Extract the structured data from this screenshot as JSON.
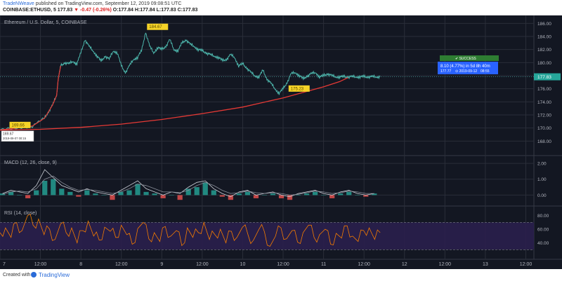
{
  "header": {
    "publisher": "TradeNWeave",
    "published_text": "published on TradingView.com, September 12, 2019 09:08:51 UTC",
    "symbol": "COINBASE:ETHUSD, 5",
    "last": "177.83",
    "change": "▼ -0.47 (-0.26%)",
    "ohlc": "O:177.84 H:177.84 L:177.83 C:177.83"
  },
  "chart_data": {
    "type": "line",
    "title": "Ethereum / U.S. Dollar, 5, COINBASE",
    "price": {
      "ylim": [
        166,
        187
      ],
      "yticks": [
        168.0,
        170.0,
        172.0,
        174.0,
        176.0,
        178.0,
        180.0,
        182.0,
        184.0,
        186.0
      ],
      "ytick_labels": [
        "168.00",
        "170.00",
        "172.00",
        "174.00",
        "176.00",
        "178.00",
        "180.00",
        "182.00",
        "184.00",
        "186.00"
      ],
      "last_price_label": "177.83",
      "series": [
        {
          "x": [
            0.0,
            0.2,
            0.4,
            0.55,
            0.6,
            0.65,
            0.7,
            0.72,
            0.75,
            0.8,
            0.85,
            0.9,
            0.95,
            1.0,
            1.05,
            1.1,
            1.15,
            1.2,
            1.25,
            1.3,
            1.35,
            1.4,
            1.45,
            1.5,
            1.55,
            1.6,
            1.65,
            1.7,
            1.75,
            1.8,
            1.85,
            1.9,
            1.95,
            2.0,
            2.05,
            2.1,
            2.15,
            2.2,
            2.25,
            2.3,
            2.35,
            2.4,
            2.45,
            2.5,
            2.55,
            2.6,
            2.65,
            2.7,
            2.75,
            2.8,
            2.85,
            2.9,
            2.95,
            3.0,
            3.05,
            3.1,
            3.15,
            3.2,
            3.25,
            3.3,
            3.35,
            3.4,
            3.45,
            3.5,
            3.55,
            3.6,
            3.65,
            3.7,
            3.75,
            3.8,
            3.85,
            3.9,
            3.95,
            4.0,
            4.05,
            4.1,
            4.15,
            4.2,
            4.25,
            4.3,
            4.35,
            4.4,
            4.45,
            4.5,
            4.55,
            4.6,
            4.65,
            4.7
          ],
          "y": [
            169.7,
            170.0,
            170.3,
            171.5,
            172.5,
            173.5,
            175.0,
            177.5,
            179.5,
            180.0,
            179.8,
            180.2,
            179.8,
            181.5,
            183.5,
            182.5,
            181.8,
            181.0,
            180.2,
            181.0,
            180.5,
            181.8,
            181.5,
            179.5,
            178.5,
            179.5,
            180.5,
            180.8,
            181.8,
            184.67,
            182.5,
            181.5,
            182.3,
            182.0,
            182.5,
            183.5,
            182.0,
            181.8,
            183.0,
            183.5,
            182.8,
            182.5,
            182.0,
            181.8,
            181.5,
            181.2,
            181.0,
            180.8,
            180.3,
            180.5,
            181.2,
            180.8,
            179.5,
            179.8,
            179.2,
            178.5,
            178.0,
            177.8,
            178.8,
            177.5,
            176.8,
            176.0,
            175.3,
            176.0,
            177.0,
            178.3,
            178.5,
            178.0,
            177.5,
            178.0,
            178.3,
            178.5,
            177.8,
            178.0,
            178.3,
            178.0,
            177.83,
            177.83,
            177.83,
            177.83,
            177.83,
            177.83,
            177.83,
            177.83,
            177.83,
            177.83,
            177.83,
            177.83
          ],
          "line_color": "#4db6ac",
          "mode": "price"
        },
        {
          "x": [
            0.0,
            0.5,
            1.0,
            1.5,
            2.0,
            2.5,
            3.0,
            3.5,
            4.0,
            4.2,
            4.3
          ],
          "y": [
            169.67,
            169.8,
            170.1,
            170.6,
            171.3,
            172.2,
            173.2,
            174.6,
            176.3,
            177.1,
            177.7
          ],
          "line_color": "#e53935",
          "mode": "curve"
        }
      ],
      "annotations": [
        {
          "text": "184.67",
          "x": 1.8,
          "y": 184.67,
          "style": "yellow"
        },
        {
          "text": "169.66",
          "x": 0.1,
          "y": 169.66,
          "style": "yellow"
        },
        {
          "text": "175.23",
          "x": 3.55,
          "y": 175.23,
          "style": "yellow"
        },
        {
          "text": "169.67",
          "x": 0.0,
          "y": 169.67,
          "style": "white"
        },
        {
          "text": "2019-09-07 00:15",
          "x": 0.0,
          "y": 169.67,
          "style": "white-sub"
        }
      ],
      "forecast": {
        "badge": "✔ SUCCESS",
        "line1": "8.10 (4.77%) in 5d 8h 40m",
        "line2_a": "177.77",
        "line2_b": "⊙ 2019-09-12",
        "line2_c": "08:55"
      }
    },
    "macd": {
      "title": "MACD (12, 26, close, 9)",
      "yticks": [
        0.0,
        1.0,
        2.0
      ],
      "ytick_labels": [
        "0.00",
        "1.00",
        "2.00"
      ],
      "ylim": [
        -0.6,
        2.4
      ],
      "histogram": [
        0.1,
        0.2,
        0.0,
        -0.2,
        0.3,
        0.9,
        1.0,
        0.4,
        0.2,
        -0.1,
        0.3,
        0.1,
        0.0,
        -0.3,
        0.2,
        0.3,
        0.7,
        0.2,
        0.1,
        -0.2,
        0.0,
        -0.3,
        0.4,
        0.5,
        0.8,
        0.3,
        -0.1,
        -0.3,
        0.1,
        0.2,
        -0.2,
        0.0,
        0.1,
        -0.2,
        -0.3,
        0.0,
        0.1,
        0.2,
        0.0,
        -0.2,
        0.1,
        0.2,
        0.0,
        -0.1,
        0.1
      ],
      "macd_line": [
        0.1,
        0.3,
        0.2,
        0.1,
        0.6,
        1.6,
        1.1,
        0.6,
        0.4,
        0.2,
        0.4,
        0.2,
        0.1,
        0.0,
        0.3,
        0.6,
        0.9,
        0.4,
        0.2,
        0.0,
        0.2,
        0.1,
        0.5,
        0.8,
        0.9,
        0.4,
        0.1,
        -0.1,
        0.2,
        0.3,
        0.0,
        0.1,
        0.2,
        0.0,
        -0.1,
        0.1,
        0.2,
        0.3,
        0.1,
        0.0,
        0.2,
        0.3,
        0.1,
        0.0,
        0.1
      ],
      "signal_line": [
        0.05,
        0.2,
        0.25,
        0.2,
        0.4,
        1.0,
        1.2,
        0.8,
        0.5,
        0.3,
        0.35,
        0.3,
        0.2,
        0.1,
        0.2,
        0.4,
        0.7,
        0.6,
        0.4,
        0.2,
        0.2,
        0.15,
        0.3,
        0.6,
        0.8,
        0.6,
        0.3,
        0.1,
        0.15,
        0.25,
        0.15,
        0.1,
        0.15,
        0.1,
        0.0,
        0.05,
        0.15,
        0.25,
        0.2,
        0.1,
        0.15,
        0.25,
        0.2,
        0.1,
        0.1
      ]
    },
    "rsi": {
      "title": "RSI (14, close)",
      "yticks": [
        40.0,
        60.0,
        80.0
      ],
      "ytick_labels": [
        "40.00",
        "60.00",
        "80.00"
      ],
      "ylim": [
        18,
        92
      ],
      "upper": 70,
      "lower": 30,
      "values": [
        55,
        62,
        48,
        70,
        58,
        80,
        66,
        75,
        52,
        60,
        45,
        68,
        55,
        62,
        40,
        58,
        72,
        50,
        44,
        63,
        57,
        48,
        66,
        52,
        38,
        61,
        70,
        46,
        55,
        42,
        64,
        50,
        58,
        36,
        62,
        48,
        55,
        70,
        45,
        52,
        60,
        40,
        57,
        48,
        63,
        52,
        44,
        60,
        56,
        35,
        50,
        62,
        46,
        58,
        41,
        55,
        66,
        48,
        52,
        60,
        38,
        54,
        47,
        65,
        50,
        42,
        58,
        62,
        45,
        55
      ]
    },
    "x_axis": {
      "xlim": [
        0,
        6.6
      ],
      "ticks": [
        0.0,
        0.5,
        1.0,
        1.5,
        2.0,
        2.5,
        3.0,
        3.5,
        4.0,
        4.5,
        5.0,
        5.5,
        6.0,
        6.5
      ],
      "labels": [
        "7",
        "12:00",
        "8",
        "12:00",
        "9",
        "12:00",
        "10",
        "12:00",
        "11",
        "12:00",
        "12",
        "12:00",
        "13",
        "12:00"
      ]
    }
  },
  "footer": {
    "created_with": "Created with",
    "brand": "TradingView"
  },
  "colors": {
    "background": "#131722",
    "grid": "#2a2e39",
    "price_line": "#4db6ac",
    "curve": "#e53935",
    "rsi_line": "#f57c00",
    "rsi_band": "#2a1f4d",
    "success": "#2e7d32",
    "forecast_box": "#2962ff",
    "yellow_label": "#f5d327"
  }
}
